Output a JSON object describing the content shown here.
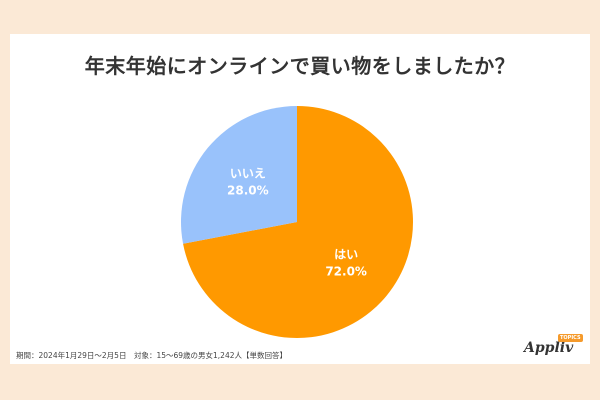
{
  "chart_data": {
    "type": "pie",
    "title": "年末年始にオンラインで買い物をしましたか？",
    "slices": [
      {
        "label": "はい",
        "value": 72.0,
        "value_label": "72.0%",
        "color": "#ff9900"
      },
      {
        "label": "いいえ",
        "value": 28.0,
        "value_label": "28.0%",
        "color": "#99c2fb"
      }
    ],
    "start": "top, clockwise"
  },
  "footnote": "期間：2024年1月29日～2月5日　対象：15～69歳の男女1,242人【単数回答】",
  "logo": {
    "text": "Appliv",
    "badge": "TOPICS"
  },
  "colors": {
    "frame": "#fbe9d6",
    "title": "#333333"
  }
}
